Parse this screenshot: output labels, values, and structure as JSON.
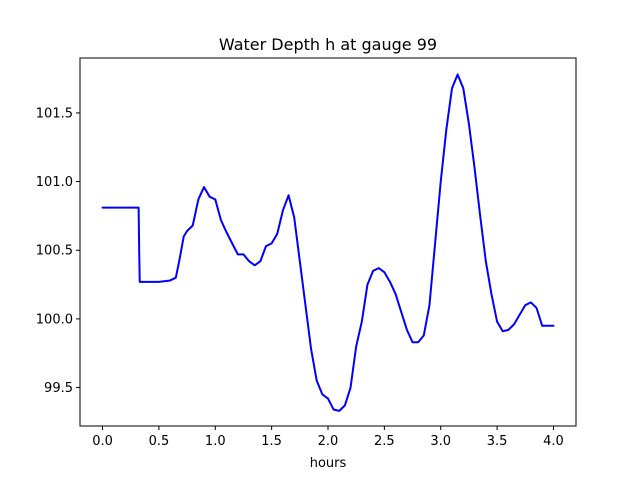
{
  "chart_data": {
    "type": "line",
    "title": "Water Depth h at gauge 99",
    "xlabel": "hours",
    "ylabel": "",
    "xlim": [
      -0.2,
      4.2
    ],
    "ylim": [
      99.22,
      101.9
    ],
    "grid": false,
    "xticks": [
      0.0,
      0.5,
      1.0,
      1.5,
      2.0,
      2.5,
      3.0,
      3.5,
      4.0
    ],
    "xtick_labels": [
      "0.0",
      "0.5",
      "1.0",
      "1.5",
      "2.0",
      "2.5",
      "3.0",
      "3.5",
      "4.0"
    ],
    "yticks": [
      99.5,
      100.0,
      100.5,
      101.0,
      101.5
    ],
    "ytick_labels": [
      "99.5",
      "100.0",
      "100.5",
      "101.0",
      "101.5"
    ],
    "colors": {
      "line": "#0000ff",
      "axes": "#000000",
      "background": "#ffffff"
    },
    "series": [
      {
        "x": [
          0.0,
          0.1,
          0.2,
          0.32,
          0.325,
          0.33,
          0.4,
          0.5,
          0.6,
          0.65,
          0.68,
          0.72,
          0.75,
          0.8,
          0.85,
          0.9,
          0.95,
          1.0,
          1.05,
          1.1,
          1.15,
          1.2,
          1.25,
          1.3,
          1.35,
          1.4,
          1.45,
          1.5,
          1.55,
          1.6,
          1.65,
          1.7,
          1.75,
          1.8,
          1.85,
          1.9,
          1.95,
          2.0,
          2.05,
          2.1,
          2.15,
          2.2,
          2.25,
          2.3,
          2.35,
          2.4,
          2.45,
          2.5,
          2.55,
          2.6,
          2.65,
          2.7,
          2.75,
          2.8,
          2.85,
          2.9,
          2.95,
          3.0,
          3.05,
          3.1,
          3.15,
          3.2,
          3.25,
          3.3,
          3.35,
          3.4,
          3.45,
          3.5,
          3.55,
          3.6,
          3.65,
          3.7,
          3.75,
          3.8,
          3.85,
          3.9,
          3.95,
          4.0
        ],
        "y": [
          100.81,
          100.81,
          100.81,
          100.81,
          100.5,
          100.27,
          100.27,
          100.27,
          100.28,
          100.3,
          100.42,
          100.6,
          100.64,
          100.68,
          100.87,
          100.96,
          100.89,
          100.87,
          100.72,
          100.63,
          100.55,
          100.47,
          100.47,
          100.42,
          100.39,
          100.42,
          100.53,
          100.55,
          100.62,
          100.79,
          100.9,
          100.74,
          100.42,
          100.1,
          99.78,
          99.55,
          99.45,
          99.42,
          99.34,
          99.33,
          99.37,
          99.5,
          99.8,
          99.98,
          100.25,
          100.35,
          100.37,
          100.34,
          100.27,
          100.18,
          100.05,
          99.92,
          99.83,
          99.83,
          99.88,
          100.1,
          100.55,
          101.0,
          101.38,
          101.68,
          101.78,
          101.68,
          101.42,
          101.1,
          100.75,
          100.42,
          100.18,
          99.98,
          99.91,
          99.92,
          99.96,
          100.03,
          100.1,
          100.12,
          100.08,
          99.95,
          99.95,
          99.95
        ]
      }
    ]
  }
}
